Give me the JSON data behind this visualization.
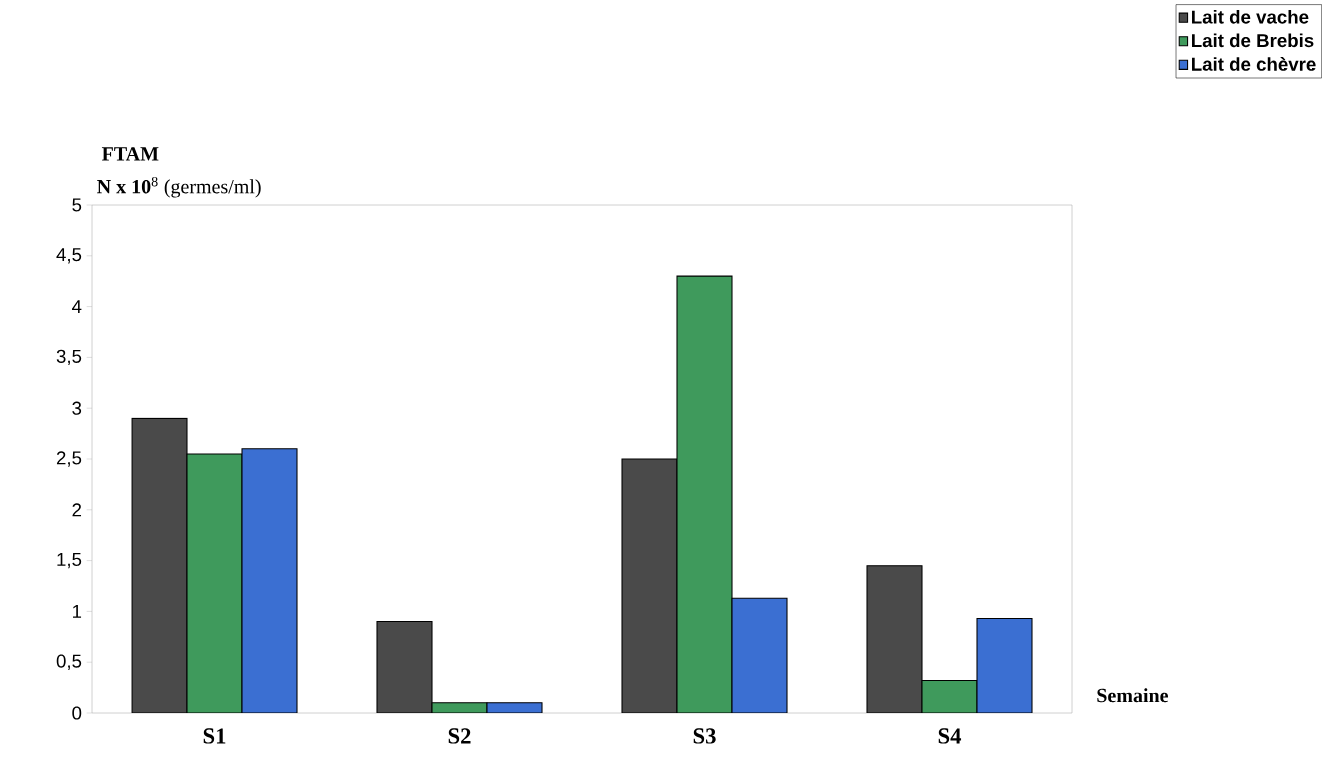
{
  "chart_data": {
    "type": "bar",
    "title": "FTAM",
    "ylabel": "**N x 10**$^{8}$ (germes/ml)",
    "xlabel": "Semaine",
    "categories": [
      "S1",
      "S2",
      "S3",
      "S4"
    ],
    "series": [
      {
        "name": "Lait de vache",
        "color": "#4a4a4a",
        "values": [
          2.9,
          0.9,
          2.5,
          1.45
        ]
      },
      {
        "name": "Lait de Brebis",
        "color": "#3f9a5c",
        "values": [
          2.55,
          0.1,
          4.3,
          0.32
        ]
      },
      {
        "name": "Lait de chèvre",
        "color": "#3b6fd2",
        "values": [
          2.6,
          0.1,
          1.13,
          0.93
        ]
      }
    ],
    "ylim": [
      0,
      5
    ],
    "yticks": [
      0,
      {
        "value": 0.5,
        "label": "0,5"
      },
      1,
      {
        "value": 1.5,
        "label": "1,5"
      },
      2,
      {
        "value": 2.5,
        "label": "2,5"
      },
      3,
      {
        "value": 3.5,
        "label": "3,5"
      },
      4,
      {
        "value": 4.5,
        "label": "4,5"
      },
      5
    ],
    "legend": "top right",
    "grid": false
  }
}
